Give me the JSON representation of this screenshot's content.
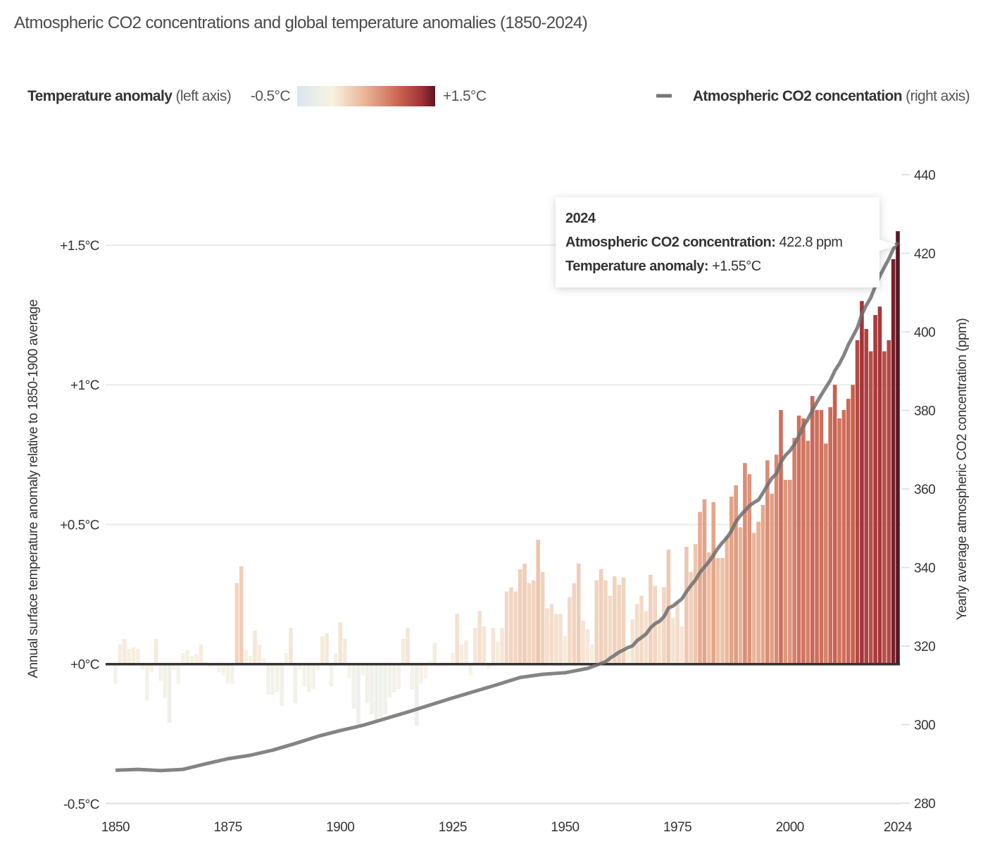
{
  "chart_data": {
    "type": "bar+line",
    "title": "Atmospheric CO2 concentrations and global temperature anomalies (1850-2024)",
    "legend": {
      "temp_label_bold": "Temperature anomaly",
      "temp_label_suffix": " (left axis)",
      "scale_min_label": "-0.5°C",
      "scale_max_label": "+1.5°C",
      "co2_label_bold": "Atmospheric CO2 concentation",
      "co2_label_suffix": " (right axis)",
      "placement": "top"
    },
    "colors": {
      "scale": [
        "#dbe5ee",
        "#f7f3e3",
        "#e9b295",
        "#c8604f",
        "#a2333a",
        "#5b1522"
      ],
      "co2_line": "#6e6e6e",
      "baseline": "#333333",
      "grid": "#ebebeb"
    },
    "ylabel_left": "Annual surface temperature anomaly relative to 1850-1900 average",
    "ylabel_right": "Yearly average atmospheric CO2 concentration (ppm)",
    "ylim_left": [
      -0.5,
      1.5
    ],
    "ylim_right": [
      280,
      440
    ],
    "xlim": [
      1850,
      2024
    ],
    "grid": true,
    "x_ticks": [
      "1850",
      "1875",
      "1900",
      "1925",
      "1950",
      "1975",
      "2000",
      "2024"
    ],
    "y_ticks_left": [
      {
        "value": -0.5,
        "label": "-0.5°C"
      },
      {
        "value": 0,
        "label": "+0°C"
      },
      {
        "value": 0.5,
        "label": "+0.5°C"
      },
      {
        "value": 1,
        "label": "+1°C"
      },
      {
        "value": 1.5,
        "label": "+1.5°C"
      }
    ],
    "y_ticks_right": [
      "280",
      "300",
      "320",
      "340",
      "360",
      "380",
      "400",
      "420",
      "440"
    ],
    "temperature": {
      "start_year": 1850,
      "values": [
        -0.07,
        0.07,
        0.09,
        0.055,
        0.06,
        0.055,
        -0.02,
        -0.13,
        -0.03,
        0.09,
        -0.06,
        -0.12,
        -0.21,
        -0.02,
        -0.07,
        0.04,
        0.05,
        0.03,
        0.035,
        0.07,
        0.01,
        -0.01,
        0.0,
        -0.03,
        -0.04,
        -0.07,
        -0.07,
        0.29,
        0.35,
        0.05,
        0.03,
        0.12,
        0.07,
        0.02,
        -0.11,
        -0.11,
        -0.1,
        -0.15,
        0.04,
        0.13,
        -0.14,
        -0.02,
        -0.08,
        -0.1,
        -0.09,
        -0.02,
        0.1,
        0.11,
        -0.08,
        0.04,
        0.15,
        0.09,
        -0.05,
        -0.16,
        -0.22,
        -0.04,
        -0.14,
        -0.18,
        -0.2,
        -0.19,
        -0.18,
        -0.12,
        -0.1,
        -0.09,
        0.09,
        0.13,
        -0.09,
        -0.22,
        -0.07,
        -0.05,
        0.01,
        0.076,
        -0.01,
        0.0,
        0.005,
        0.04,
        0.18,
        0.07,
        0.085,
        -0.04,
        0.13,
        0.19,
        0.135,
        -0.015,
        0.13,
        0.08,
        0.13,
        0.26,
        0.275,
        0.26,
        0.34,
        0.36,
        0.29,
        0.3,
        0.445,
        0.33,
        0.2,
        0.215,
        0.18,
        0.18,
        0.1,
        0.24,
        0.29,
        0.36,
        0.155,
        0.125,
        0.07,
        0.3,
        0.34,
        0.3,
        0.245,
        0.315,
        0.285,
        0.31,
        0.05,
        0.16,
        0.215,
        0.245,
        0.19,
        0.32,
        0.28,
        0.16,
        0.275,
        0.41,
        0.165,
        0.215,
        0.135,
        0.42,
        0.33,
        0.43,
        0.545,
        0.59,
        0.4,
        0.58,
        0.38,
        0.38,
        0.46,
        0.6,
        0.64,
        0.49,
        0.72,
        0.68,
        0.47,
        0.51,
        0.57,
        0.73,
        0.61,
        0.75,
        0.91,
        0.66,
        0.66,
        0.81,
        0.89,
        0.88,
        0.8,
        0.96,
        0.91,
        0.91,
        0.79,
        0.92,
        1.0,
        0.88,
        0.91,
        0.95,
        1.0,
        1.16,
        1.3,
        1.2,
        1.12,
        1.25,
        1.28,
        1.12,
        1.16,
        1.45,
        1.55
      ]
    },
    "co2": {
      "years": [
        1850,
        1855,
        1860,
        1865,
        1870,
        1875,
        1880,
        1885,
        1890,
        1895,
        1900,
        1905,
        1910,
        1915,
        1920,
        1925,
        1930,
        1935,
        1940,
        1945,
        1950,
        1955,
        1959,
        1960,
        1961,
        1962,
        1963,
        1964,
        1965,
        1966,
        1967,
        1968,
        1969,
        1970,
        1971,
        1972,
        1973,
        1974,
        1975,
        1976,
        1977,
        1978,
        1979,
        1980,
        1981,
        1982,
        1983,
        1984,
        1985,
        1986,
        1987,
        1988,
        1989,
        1990,
        1991,
        1992,
        1993,
        1994,
        1995,
        1996,
        1997,
        1998,
        1999,
        2000,
        2001,
        2002,
        2003,
        2004,
        2005,
        2006,
        2007,
        2008,
        2009,
        2010,
        2011,
        2012,
        2013,
        2014,
        2015,
        2016,
        2017,
        2018,
        2019,
        2020,
        2021,
        2022,
        2023,
        2024
      ],
      "values": [
        288.4,
        288.6,
        288.3,
        288.6,
        290.0,
        291.3,
        292.2,
        293.5,
        295.2,
        297.0,
        298.5,
        299.8,
        301.5,
        303.2,
        305.0,
        306.8,
        308.5,
        310.2,
        312.0,
        312.8,
        313.2,
        314.3,
        315.98,
        316.91,
        317.64,
        318.45,
        318.99,
        319.62,
        320.04,
        321.37,
        322.18,
        323.05,
        324.62,
        325.68,
        326.32,
        327.46,
        329.68,
        330.19,
        331.13,
        332.03,
        333.84,
        335.41,
        336.84,
        338.76,
        340.12,
        341.48,
        343.15,
        344.87,
        346.35,
        347.61,
        349.31,
        351.69,
        353.2,
        354.45,
        355.7,
        356.54,
        357.21,
        358.96,
        360.97,
        362.74,
        363.88,
        366.84,
        368.54,
        369.71,
        371.32,
        373.45,
        375.98,
        377.7,
        379.98,
        382.09,
        384.02,
        385.83,
        387.64,
        390.1,
        391.85,
        394.06,
        396.74,
        398.81,
        401.01,
        404.41,
        406.76,
        408.72,
        411.65,
        414.21,
        416.41,
        418.53,
        421.08,
        422.8
      ]
    },
    "tooltip": {
      "year": "2024",
      "co2_label": "Atmospheric CO2 concentration:",
      "co2_value": " 422.8 ppm",
      "temp_label": "Temperature anomaly:",
      "temp_value": " +1.55°C"
    }
  }
}
